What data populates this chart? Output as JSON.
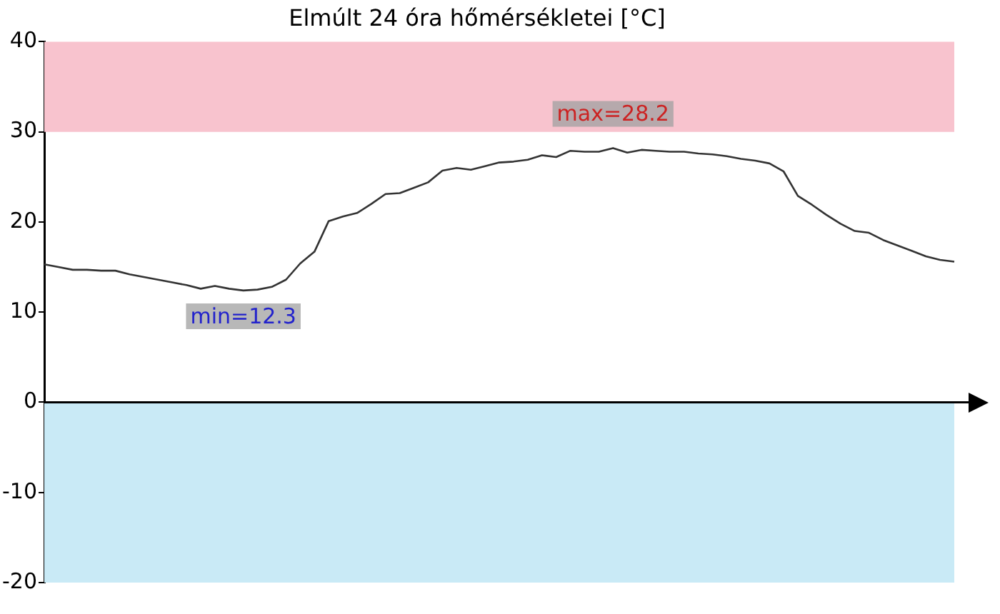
{
  "chart_data": {
    "type": "line",
    "title": "Elmúlt 24 óra hőmérsékletei [°C]",
    "categories": [
      null,
      null,
      null,
      null,
      null,
      null,
      null,
      null,
      null,
      null,
      null,
      null,
      null,
      null,
      null,
      null,
      null,
      null,
      null,
      null,
      null,
      null,
      null,
      null,
      null,
      null,
      null,
      null,
      null,
      null,
      null,
      null,
      null,
      null,
      null,
      null,
      null,
      null,
      null,
      null,
      null,
      null,
      null,
      null,
      null,
      null,
      null,
      null,
      null,
      null,
      null,
      null,
      null,
      null,
      null,
      null,
      null,
      null,
      null,
      null,
      null,
      null,
      null,
      null,
      null
    ],
    "series": [
      {
        "color": "#333333",
        "values": [
          15.3,
          15.0,
          14.7,
          14.7,
          14.6,
          14.6,
          14.2,
          13.9,
          13.6,
          13.3,
          13.0,
          12.6,
          12.9,
          12.6,
          12.4,
          12.5,
          12.8,
          13.6,
          15.4,
          16.7,
          20.1,
          20.6,
          21.0,
          22.0,
          23.1,
          23.2,
          23.8,
          24.4,
          25.7,
          26.0,
          25.8,
          26.2,
          26.6,
          26.7,
          26.9,
          27.4,
          27.2,
          27.9,
          27.8,
          27.8,
          28.2,
          27.7,
          28.0,
          27.9,
          27.8,
          27.8,
          27.6,
          27.5,
          27.3,
          27.0,
          26.8,
          26.5,
          25.6,
          22.9,
          21.9,
          20.8,
          19.8,
          19.0,
          18.8,
          18.0,
          17.4,
          16.8,
          16.2,
          15.8,
          15.6
        ]
      }
    ],
    "ylim": [
      -20,
      40
    ],
    "yticks": [
      -20,
      -10,
      0,
      10,
      20,
      30,
      40
    ],
    "tick_labels": "y",
    "marker": "none",
    "line_style": "solid",
    "bands": [
      {
        "axis": "y",
        "from": 30,
        "to": 40,
        "color": "#f8c3ce"
      },
      {
        "axis": "y",
        "from": -20,
        "to": 0,
        "color": "#c9eaf6"
      }
    ],
    "annotations": [
      "min=12.3",
      "max=28.2"
    ]
  }
}
